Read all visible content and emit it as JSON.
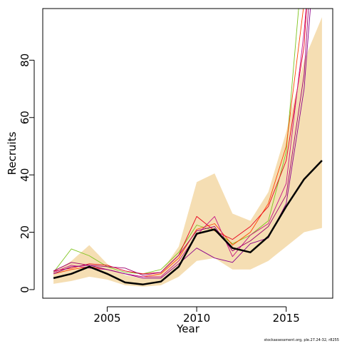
{
  "chart_data": {
    "type": "line",
    "title": "",
    "xlabel": "Year",
    "ylabel": "Recruits",
    "xlim": [
      2001.4,
      2017.6
    ],
    "ylim": [
      -3,
      98
    ],
    "x_ticks": [
      2005,
      2010,
      2015
    ],
    "y_ticks": [
      0,
      20,
      40,
      60,
      80
    ],
    "grid": false,
    "legend": "none",
    "x": [
      2002,
      2003,
      2004,
      2005,
      2006,
      2007,
      2008,
      2009,
      2010,
      2011,
      2012,
      2013,
      2014,
      2015,
      2016,
      2017
    ],
    "band": {
      "color": "#f5deb3",
      "lower": [
        2,
        3,
        4.5,
        3.5,
        1.5,
        1,
        1.5,
        4.5,
        10,
        11,
        7,
        7,
        10,
        15,
        20,
        21.5
      ],
      "upper": [
        6,
        10,
        15.5,
        9,
        5,
        4,
        6,
        15,
        37.5,
        40.5,
        26.5,
        24,
        34,
        55,
        80,
        95
      ]
    },
    "series": [
      {
        "color": "#000000",
        "width": 2.5,
        "values": [
          4,
          5.5,
          8,
          5.5,
          2.5,
          1.8,
          2.8,
          8,
          19.5,
          21,
          14.5,
          13,
          18.5,
          29,
          38.5,
          45
        ]
      },
      {
        "color": "#7fc41f",
        "width": 0.9,
        "values": [
          6,
          14.2,
          11.8,
          8,
          6,
          5.5,
          7,
          13,
          22.5,
          20.5,
          16,
          19,
          24,
          48,
          120,
          null
        ]
      },
      {
        "color": "#ff4500",
        "width": 0.9,
        "values": [
          5.5,
          7,
          8,
          7,
          5.5,
          4.5,
          5.5,
          11,
          21,
          23,
          15.5,
          20,
          30,
          50,
          100,
          null
        ]
      },
      {
        "color": "#e8001c",
        "width": 0.9,
        "values": [
          6.5,
          7.5,
          9,
          8.5,
          6.5,
          5.5,
          6,
          12,
          25.5,
          20.5,
          17.5,
          22,
          29,
          45,
          85,
          180
        ]
      },
      {
        "color": "#c71585",
        "width": 0.9,
        "values": [
          6,
          8.5,
          7.5,
          7,
          5.5,
          4.5,
          4.5,
          10,
          19,
          25.5,
          11.5,
          19,
          23,
          37,
          90,
          160
        ]
      },
      {
        "color": "#a0006e",
        "width": 0.9,
        "values": [
          6.5,
          9.5,
          8.5,
          8,
          7.5,
          5,
          6,
          12,
          20.5,
          22,
          13.5,
          17,
          22,
          33,
          75,
          170
        ]
      },
      {
        "color": "#8b008b",
        "width": 0.9,
        "values": [
          5.5,
          8,
          8.5,
          7,
          5.5,
          4,
          4,
          9,
          14.5,
          11,
          9.5,
          16,
          18,
          30,
          70,
          150
        ]
      }
    ]
  },
  "footnote": "stockassessment.org, ple.27.24-32, r8255"
}
